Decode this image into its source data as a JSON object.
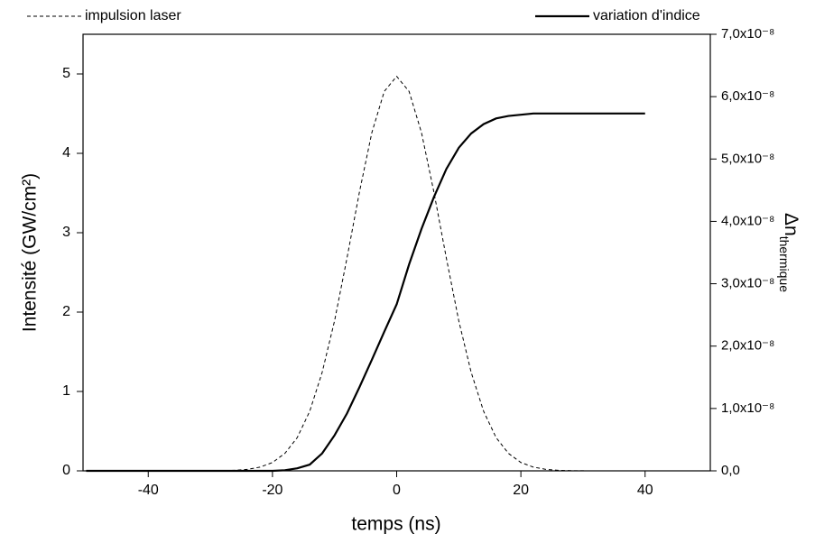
{
  "chart_data": {
    "type": "line",
    "xlabel": "temps (ns)",
    "ylabel": "Intensité (GW/cm²)",
    "y2label": [
      "Δn",
      "thermique"
    ],
    "x": [
      -50,
      -48,
      -46,
      -44,
      -42,
      -40,
      -38,
      -36,
      -34,
      -32,
      -30,
      -28,
      -26,
      -24,
      -22,
      -20,
      -18,
      -16,
      -14,
      -12,
      -10,
      -8,
      -6,
      -4,
      -2,
      0,
      2,
      4,
      6,
      8,
      10,
      12,
      14,
      16,
      18,
      20,
      22,
      24,
      26,
      28,
      30,
      32,
      34,
      36,
      38,
      40
    ],
    "series": [
      {
        "name": "impulsion laser",
        "color": "#000000",
        "line_style": "dashed",
        "values": [
          0,
          0,
          0,
          0,
          0,
          0,
          0,
          0,
          0,
          0,
          0.0008,
          0.0026,
          0.0073,
          0.019,
          0.047,
          0.105,
          0.22,
          0.42,
          0.75,
          1.24,
          1.89,
          2.68,
          3.51,
          4.26,
          4.78,
          4.97,
          4.78,
          4.26,
          3.51,
          2.68,
          1.89,
          1.24,
          0.75,
          0.42,
          0.22,
          0.105,
          0.047,
          0.019,
          0.0073,
          0.0026,
          0.0008,
          0,
          0,
          0,
          0,
          0
        ]
      },
      {
        "name": "variation d'indice",
        "color": "#000000",
        "line_style": "solid",
        "axis": "y2",
        "values": [
          0,
          0,
          0,
          0,
          0,
          0,
          0,
          0,
          0,
          0,
          0,
          0,
          0,
          0,
          0,
          0,
          1e-10,
          4e-10,
          1e-09,
          2.8e-09,
          5.7e-09,
          9.2e-09,
          1.34e-08,
          1.78e-08,
          2.23e-08,
          2.67e-08,
          3.31e-08,
          3.88e-08,
          4.39e-08,
          4.84e-08,
          5.18e-08,
          5.41e-08,
          5.56e-08,
          5.65e-08,
          5.69e-08,
          5.71e-08,
          5.73e-08,
          5.73e-08,
          5.73e-08,
          5.73e-08,
          5.73e-08,
          5.73e-08,
          5.73e-08,
          5.73e-08,
          5.73e-08,
          5.73e-08
        ]
      }
    ],
    "xlim": [
      -50.5,
      50.5
    ],
    "xticks": [
      -40,
      -20,
      0,
      20,
      40
    ],
    "ylim": [
      0,
      5.5
    ],
    "yticks": [
      0,
      1,
      2,
      3,
      4,
      5
    ],
    "y2lim": [
      0,
      7e-08
    ],
    "y2ticks": [
      {
        "value": 0,
        "label": "0,0"
      },
      {
        "value": 1e-08,
        "label": "1,0x10⁻⁸"
      },
      {
        "value": 2e-08,
        "label": "2,0x10⁻⁸"
      },
      {
        "value": 3e-08,
        "label": "3,0x10⁻⁸"
      },
      {
        "value": 4e-08,
        "label": "4,0x10⁻⁸"
      },
      {
        "value": 5e-08,
        "label": "5,0x10⁻⁸"
      },
      {
        "value": 6e-08,
        "label": "6,0x10⁻⁸"
      },
      {
        "value": 7e-08,
        "label": "7,0x10⁻⁸"
      }
    ],
    "grid": false
  }
}
